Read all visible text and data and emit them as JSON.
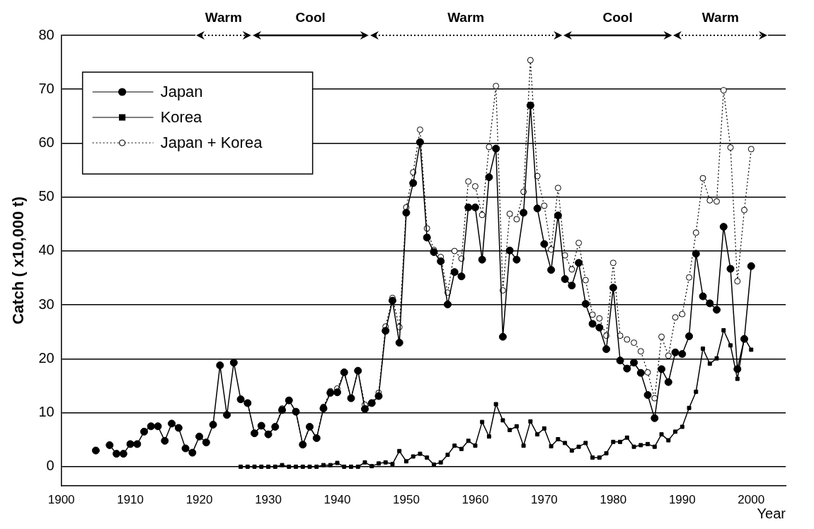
{
  "chart_data": {
    "type": "line",
    "xlabel": "Year",
    "ylabel": "Catch ( x10,000 t)",
    "x": [
      1905,
      1906,
      1907,
      1908,
      1909,
      1910,
      1911,
      1912,
      1913,
      1914,
      1915,
      1916,
      1917,
      1918,
      1919,
      1920,
      1921,
      1922,
      1923,
      1924,
      1925,
      1926,
      1927,
      1928,
      1929,
      1930,
      1931,
      1932,
      1933,
      1934,
      1935,
      1936,
      1937,
      1938,
      1939,
      1940,
      1941,
      1942,
      1943,
      1944,
      1945,
      1946,
      1947,
      1948,
      1949,
      1950,
      1951,
      1952,
      1953,
      1954,
      1955,
      1956,
      1957,
      1958,
      1959,
      1960,
      1961,
      1962,
      1963,
      1964,
      1965,
      1966,
      1967,
      1968,
      1969,
      1970,
      1971,
      1972,
      1973,
      1974,
      1975,
      1976,
      1977,
      1978,
      1979,
      1980,
      1981,
      1982,
      1983,
      1984,
      1985,
      1986,
      1987,
      1988,
      1989,
      1990,
      1991,
      1992,
      1993,
      1994,
      1995,
      1996,
      1997,
      1998,
      1999,
      2000
    ],
    "series": [
      {
        "name": "Japan",
        "color": "#000000",
        "marker": "circle",
        "line_style": "solid",
        "values": [
          3.0,
          null,
          4.0,
          2.4,
          2.4,
          4.2,
          4.2,
          6.5,
          7.5,
          7.5,
          4.8,
          8.0,
          7.2,
          3.4,
          2.6,
          5.6,
          4.5,
          7.8,
          18.8,
          9.6,
          19.3,
          12.5,
          11.8,
          6.2,
          7.6,
          6.0,
          7.4,
          10.5,
          12.3,
          10.2,
          4.1,
          7.4,
          5.3,
          10.8,
          13.7,
          13.8,
          17.5,
          12.7,
          17.8,
          10.7,
          11.8,
          13.1,
          25.2,
          30.8,
          23.0,
          47.1,
          52.6,
          60.2,
          42.5,
          39.8,
          38.1,
          30.1,
          36.1,
          35.3,
          48.1,
          48.1,
          38.4,
          53.7,
          59.0,
          24.1,
          40.1,
          38.4,
          47.1,
          67.0,
          47.9,
          41.3,
          36.5,
          46.6,
          34.8,
          33.6,
          37.8,
          30.2,
          26.5,
          25.8,
          21.8,
          33.2,
          19.7,
          18.2,
          19.3,
          17.4,
          13.3,
          9.0,
          18.1,
          15.7,
          21.2,
          20.9,
          24.2,
          39.5,
          31.6,
          30.3,
          29.1,
          44.5,
          36.7,
          18.1,
          23.7,
          37.2
        ]
      },
      {
        "name": "Korea",
        "color": "#000000",
        "marker": "square",
        "line_style": "solid",
        "values": [
          null,
          null,
          null,
          null,
          null,
          null,
          null,
          null,
          null,
          null,
          null,
          null,
          null,
          null,
          null,
          null,
          null,
          null,
          null,
          null,
          null,
          0,
          0,
          0,
          0,
          0,
          0,
          0.3,
          0,
          0,
          0,
          0,
          0,
          0.3,
          0.3,
          0.7,
          0,
          0,
          0,
          0.8,
          0.1,
          0.6,
          0.8,
          0.5,
          2.9,
          1.0,
          1.9,
          2.4,
          1.7,
          0.4,
          0.8,
          2.2,
          3.9,
          3.3,
          4.8,
          3.9,
          8.3,
          5.6,
          11.6,
          8.6,
          6.8,
          7.5,
          3.9,
          8.4,
          6.0,
          7.1,
          3.8,
          5.1,
          4.4,
          3.0,
          3.7,
          4.4,
          1.7,
          1.7,
          2.5,
          4.6,
          4.6,
          5.4,
          3.7,
          4.0,
          4.2,
          3.7,
          6.0,
          4.9,
          6.5,
          7.4,
          10.9,
          13.9,
          21.9,
          19.1,
          20.1,
          25.3,
          22.5,
          16.3,
          23.9,
          21.7
        ]
      },
      {
        "name": "Japan + Korea",
        "color": "#000000",
        "marker": "circle",
        "line_style": "dotted",
        "values": [
          null,
          null,
          null,
          null,
          null,
          null,
          null,
          null,
          null,
          null,
          null,
          null,
          null,
          null,
          null,
          null,
          null,
          null,
          null,
          null,
          null,
          12.5,
          11.8,
          6.2,
          7.6,
          6.0,
          7.4,
          10.8,
          12.3,
          10.2,
          4.1,
          7.4,
          5.3,
          11.1,
          14.0,
          14.5,
          17.5,
          12.7,
          17.8,
          11.5,
          11.9,
          13.7,
          26.0,
          31.3,
          25.9,
          48.1,
          54.6,
          62.5,
          44.2,
          40.2,
          38.9,
          32.3,
          40.0,
          38.6,
          52.9,
          52.0,
          46.7,
          59.3,
          70.6,
          32.7,
          46.9,
          45.9,
          51.0,
          75.4,
          53.9,
          48.4,
          40.3,
          51.7,
          39.2,
          36.6,
          41.5,
          34.6,
          28.2,
          27.5,
          24.3,
          37.8,
          24.3,
          23.6,
          23.0,
          21.4,
          17.5,
          12.7,
          24.1,
          20.6,
          27.7,
          28.3,
          35.1,
          43.4,
          53.5,
          49.4,
          49.2,
          69.8,
          59.2,
          34.4,
          47.6,
          58.9
        ]
      }
    ],
    "xlim": [
      1900,
      2005
    ],
    "xticks": [
      1900,
      1910,
      1920,
      1930,
      1940,
      1950,
      1960,
      1970,
      1980,
      1990,
      2000
    ],
    "ylim": [
      -3.5,
      80
    ],
    "yticks": [
      0,
      10,
      20,
      30,
      40,
      50,
      60,
      70,
      80
    ],
    "grid": "y",
    "legend": "top left",
    "annotations": [
      "Warm",
      "Cool",
      "Warm",
      "Cool",
      "Warm"
    ]
  }
}
